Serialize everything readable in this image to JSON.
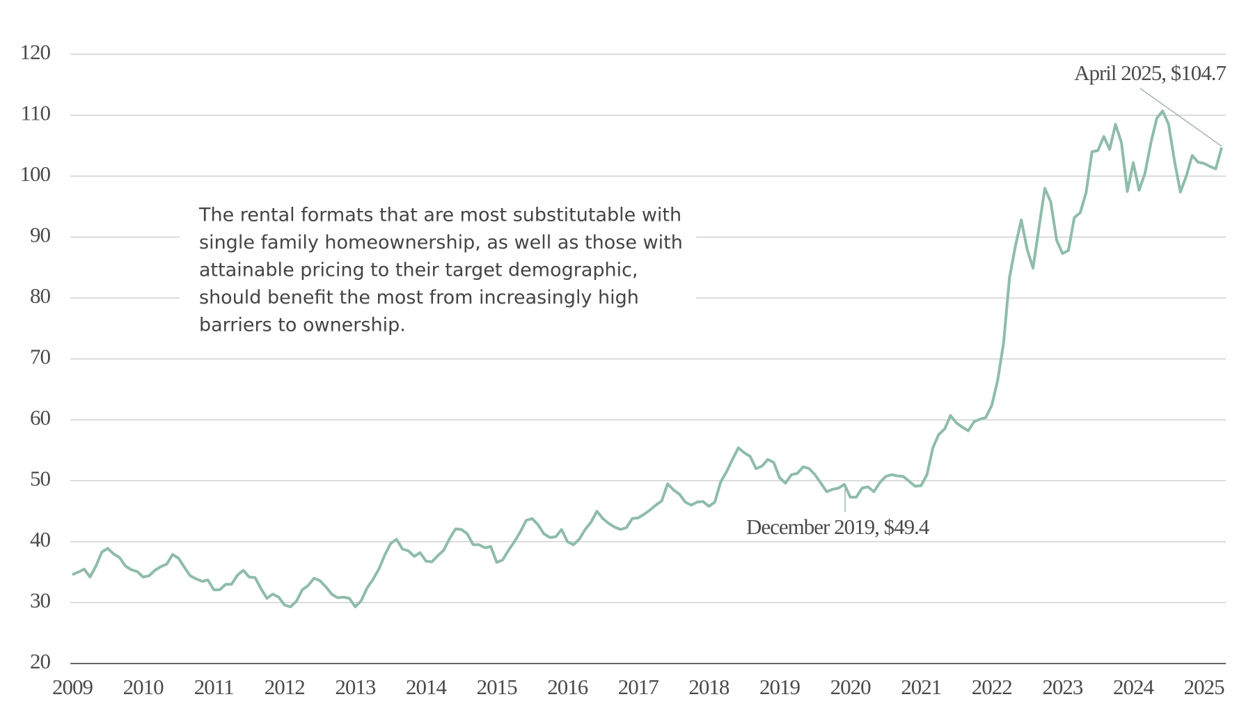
{
  "chart_data": {
    "type": "line",
    "categories": [
      "2009",
      null,
      null,
      null,
      null,
      null,
      null,
      null,
      null,
      null,
      null,
      null,
      "2010",
      null,
      null,
      null,
      null,
      null,
      null,
      null,
      null,
      null,
      null,
      null,
      "2011",
      null,
      null,
      null,
      null,
      null,
      null,
      null,
      null,
      null,
      null,
      null,
      "2012",
      null,
      null,
      null,
      null,
      null,
      null,
      null,
      null,
      null,
      null,
      null,
      "2013",
      null,
      null,
      null,
      null,
      null,
      null,
      null,
      null,
      null,
      null,
      null,
      "2014",
      null,
      null,
      null,
      null,
      null,
      null,
      null,
      null,
      null,
      null,
      null,
      "2015",
      null,
      null,
      null,
      null,
      null,
      null,
      null,
      null,
      null,
      null,
      null,
      "2016",
      null,
      null,
      null,
      null,
      null,
      null,
      null,
      null,
      null,
      null,
      null,
      "2017",
      null,
      null,
      null,
      null,
      null,
      null,
      null,
      null,
      null,
      null,
      null,
      "2018",
      null,
      null,
      null,
      null,
      null,
      null,
      null,
      null,
      null,
      null,
      null,
      "2019",
      null,
      null,
      null,
      null,
      null,
      null,
      null,
      null,
      null,
      null,
      null,
      "2020",
      null,
      null,
      null,
      null,
      null,
      null,
      null,
      null,
      null,
      null,
      null,
      "2021",
      null,
      null,
      null,
      null,
      null,
      null,
      null,
      null,
      null,
      null,
      null,
      "2022",
      null,
      null,
      null,
      null,
      null,
      null,
      null,
      null,
      null,
      null,
      null,
      "2023",
      null,
      null,
      null,
      null,
      null,
      null,
      null,
      null,
      null,
      null,
      null,
      "2024",
      null,
      null,
      null,
      null,
      null,
      null,
      null,
      null,
      null,
      null,
      null,
      "2025",
      null,
      null,
      null
    ],
    "values": [
      34.6,
      35,
      35.5,
      34.2,
      36,
      38.3,
      38.9,
      38,
      37.4,
      36,
      35.4,
      35.1,
      34.2,
      34.4,
      35.3,
      35.9,
      36.3,
      37.9,
      37.3,
      35.8,
      34.4,
      33.9,
      33.5,
      33.7,
      32.1,
      32.1,
      33,
      33,
      34.5,
      35.3,
      34.2,
      34.1,
      32.3,
      30.7,
      31.4,
      30.9,
      29.6,
      29.3,
      30.2,
      32.1,
      32.8,
      34,
      33.6,
      32.6,
      31.4,
      30.8,
      30.9,
      30.7,
      29.3,
      30.3,
      32.4,
      33.8,
      35.5,
      37.8,
      39.7,
      40.4,
      38.8,
      38.5,
      37.6,
      38.2,
      36.8,
      36.7,
      37.7,
      38.6,
      40.5,
      42.1,
      42,
      41.3,
      39.5,
      39.5,
      39,
      39.2,
      36.6,
      37,
      38.6,
      40,
      41.6,
      43.5,
      43.8,
      42.8,
      41.3,
      40.7,
      40.8,
      42,
      40,
      39.5,
      40.4,
      42,
      43.2,
      45,
      43.8,
      43,
      42.4,
      42,
      42.3,
      43.8,
      43.9,
      44.5,
      45.2,
      46,
      46.7,
      49.5,
      48.5,
      47.8,
      46.5,
      46,
      46.5,
      46.6,
      45.8,
      46.5,
      49.8,
      51.5,
      53.5,
      55.4,
      54.6,
      54,
      52,
      52.4,
      53.5,
      53,
      50.5,
      49.6,
      51,
      51.2,
      52.3,
      52,
      51,
      49.6,
      48.2,
      48.6,
      48.8,
      49.4,
      47.3,
      47.3,
      48.8,
      49,
      48.2,
      49.7,
      50.7,
      51,
      50.8,
      50.7,
      49.9,
      49.1,
      49.2,
      51,
      55.4,
      57.6,
      58.5,
      60.7,
      59.5,
      58.8,
      58.2,
      59.7,
      60.1,
      60.4,
      62.4,
      66.5,
      72.6,
      83.3,
      88.5,
      92.8,
      88,
      84.9,
      91.5,
      98,
      95.8,
      89.5,
      87.3,
      87.8,
      93.2,
      94,
      97.3,
      104,
      104.2,
      106.5,
      104.4,
      108.5,
      105.5,
      97.5,
      102.2,
      97.7,
      100.5,
      105.5,
      109.5,
      110.7,
      108.5,
      102.5,
      97.4,
      100,
      103.4,
      102.3,
      102.1,
      101.6,
      101.2,
      104.7
    ],
    "color": "#8fbcaa",
    "ylim": [
      20,
      120
    ],
    "yticks": [
      20,
      30,
      40,
      50,
      60,
      70,
      80,
      90,
      100,
      110,
      120
    ],
    "grid": true,
    "annotations": [
      "April 2025, $104.7",
      "December 2019, $49.4"
    ],
    "note": [
      "The rental formats that are most substitutable with",
      "single family homeownership, as well as those with",
      "attainable pricing to their target demographic,",
      "should benefit the most from increasingly high",
      "barriers to ownership."
    ]
  }
}
